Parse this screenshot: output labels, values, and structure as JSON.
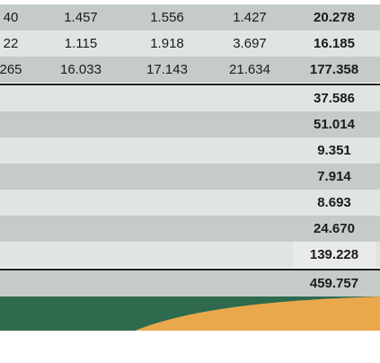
{
  "table": {
    "rows": [
      {
        "c1": "40",
        "c2": "1.457",
        "c3": "1.556",
        "c4": "1.427",
        "total": "20.278"
      },
      {
        "c1": "22",
        "c2": "1.115",
        "c3": "1.918",
        "c4": "3.697",
        "total": "16.185"
      },
      {
        "c1": "265",
        "c2": "16.033",
        "c3": "17.143",
        "c4": "21.634",
        "total": "177.358"
      }
    ],
    "subrows": [
      {
        "total": "37.586"
      },
      {
        "total": "51.014"
      },
      {
        "total": "9.351"
      },
      {
        "total": "7.914"
      },
      {
        "total": "8.693"
      },
      {
        "total": "24.670"
      },
      {
        "total": "139.228"
      }
    ],
    "grand_total": "459.757"
  },
  "colors": {
    "row_dark": "#c5ccc7",
    "row_light": "#dfe5e0",
    "band_green": "#2e6a4e",
    "band_orange": "#e9a84c"
  }
}
